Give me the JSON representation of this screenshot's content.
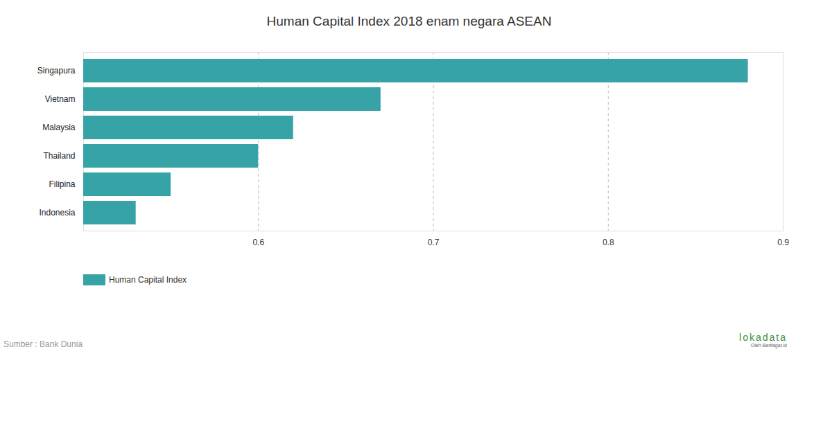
{
  "chart_data": {
    "type": "bar",
    "title": "Human Capital Index 2018 enam negara ASEAN",
    "orientation": "horizontal",
    "categories": [
      "Singapura",
      "Vietnam",
      "Malaysia",
      "Thailand",
      "Filipina",
      "Indonesia"
    ],
    "series": [
      {
        "name": "Human Capital Index",
        "color": "#36a3a7",
        "values": [
          0.88,
          0.67,
          0.62,
          0.6,
          0.55,
          0.53
        ]
      }
    ],
    "xlim": [
      0.5,
      0.9
    ],
    "xticks": [
      0.6,
      0.7,
      0.8,
      0.9
    ],
    "grid": true,
    "legend": "bottom-left",
    "source": "Sumber : Bank Dunia",
    "watermark": [
      "lokadata",
      "Oleh Beritagar.id"
    ]
  }
}
